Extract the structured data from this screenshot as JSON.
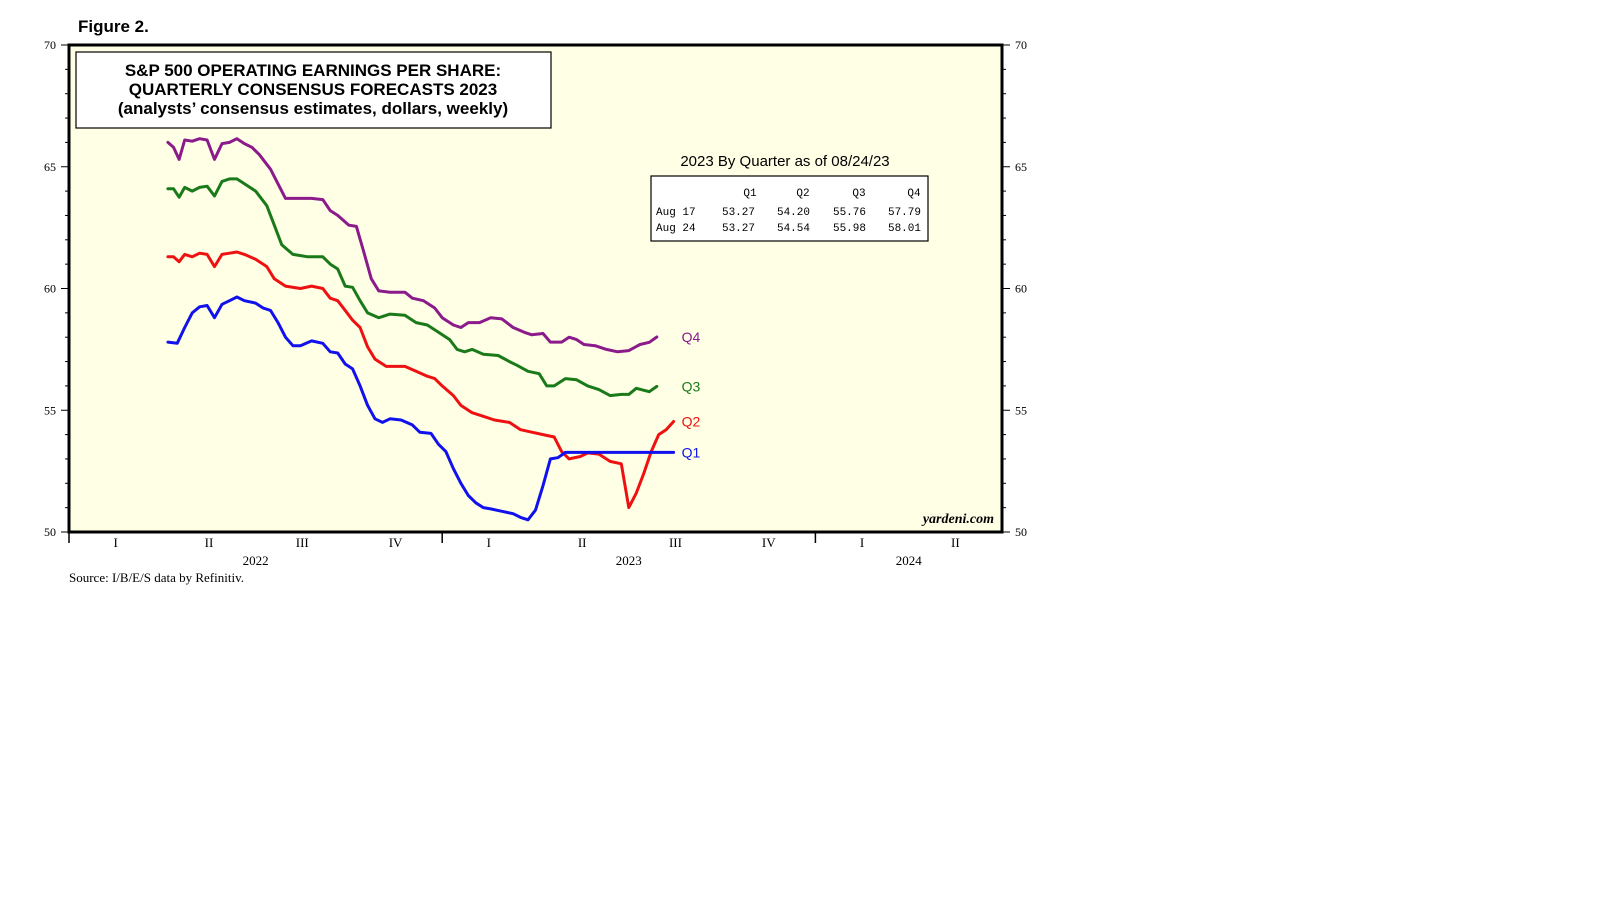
{
  "figure_label": "Figure 2.",
  "source": "Source: I/B/E/S data by Refinitiv.",
  "brand": "yardeni.com",
  "chart_data": {
    "type": "line",
    "title": [
      "S&P 500 OPERATING EARNINGS PER SHARE:",
      "QUARTERLY CONSENSUS FORECASTS 2023",
      "(analysts’ consensus estimates, dollars, weekly)"
    ],
    "ylim": [
      50,
      70
    ],
    "yticks": [
      50,
      55,
      60,
      65,
      70
    ],
    "xlim": [
      2022.0,
      2024.5
    ],
    "x_quarter_ticks": [
      {
        "x": 2022.125,
        "label": "I"
      },
      {
        "x": 2022.375,
        "label": "II"
      },
      {
        "x": 2022.625,
        "label": "III"
      },
      {
        "x": 2022.875,
        "label": "IV"
      },
      {
        "x": 2023.125,
        "label": "I"
      },
      {
        "x": 2023.375,
        "label": "II"
      },
      {
        "x": 2023.625,
        "label": "III"
      },
      {
        "x": 2023.875,
        "label": "IV"
      },
      {
        "x": 2024.125,
        "label": "I"
      },
      {
        "x": 2024.375,
        "label": "II"
      }
    ],
    "x_year_dividers": [
      2023.0,
      2024.0
    ],
    "x_years": [
      {
        "x": 2022.5,
        "label": "2022"
      },
      {
        "x": 2023.5,
        "label": "2023"
      },
      {
        "x": 2024.25,
        "label": "2024"
      }
    ],
    "grid": false,
    "series": [
      {
        "name": "Q4",
        "color": "#8B1A8B",
        "points": [
          [
            2022.265,
            66.0
          ],
          [
            2022.28,
            65.8
          ],
          [
            2022.295,
            65.3
          ],
          [
            2022.31,
            66.1
          ],
          [
            2022.33,
            66.05
          ],
          [
            2022.35,
            66.15
          ],
          [
            2022.37,
            66.1
          ],
          [
            2022.39,
            65.3
          ],
          [
            2022.41,
            65.95
          ],
          [
            2022.43,
            66.0
          ],
          [
            2022.45,
            66.15
          ],
          [
            2022.47,
            65.95
          ],
          [
            2022.49,
            65.8
          ],
          [
            2022.51,
            65.5
          ],
          [
            2022.54,
            64.9
          ],
          [
            2022.56,
            64.3
          ],
          [
            2022.58,
            63.7
          ],
          [
            2022.62,
            63.7
          ],
          [
            2022.65,
            63.7
          ],
          [
            2022.68,
            63.65
          ],
          [
            2022.7,
            63.2
          ],
          [
            2022.72,
            63.0
          ],
          [
            2022.75,
            62.6
          ],
          [
            2022.77,
            62.55
          ],
          [
            2022.79,
            61.5
          ],
          [
            2022.81,
            60.4
          ],
          [
            2022.83,
            59.9
          ],
          [
            2022.86,
            59.85
          ],
          [
            2022.9,
            59.85
          ],
          [
            2022.92,
            59.6
          ],
          [
            2022.95,
            59.5
          ],
          [
            2022.98,
            59.2
          ],
          [
            2023.0,
            58.8
          ],
          [
            2023.03,
            58.5
          ],
          [
            2023.05,
            58.4
          ],
          [
            2023.07,
            58.6
          ],
          [
            2023.1,
            58.6
          ],
          [
            2023.13,
            58.8
          ],
          [
            2023.16,
            58.75
          ],
          [
            2023.19,
            58.4
          ],
          [
            2023.22,
            58.2
          ],
          [
            2023.24,
            58.1
          ],
          [
            2023.27,
            58.15
          ],
          [
            2023.29,
            57.8
          ],
          [
            2023.32,
            57.8
          ],
          [
            2023.34,
            58.0
          ],
          [
            2023.36,
            57.9
          ],
          [
            2023.38,
            57.7
          ],
          [
            2023.41,
            57.65
          ],
          [
            2023.44,
            57.5
          ],
          [
            2023.47,
            57.4
          ],
          [
            2023.5,
            57.45
          ],
          [
            2023.53,
            57.7
          ],
          [
            2023.555,
            57.79
          ],
          [
            2023.575,
            58.01
          ]
        ]
      },
      {
        "name": "Q3",
        "color": "#1A7A1A",
        "points": [
          [
            2022.265,
            64.1
          ],
          [
            2022.28,
            64.1
          ],
          [
            2022.295,
            63.75
          ],
          [
            2022.31,
            64.15
          ],
          [
            2022.33,
            64.0
          ],
          [
            2022.35,
            64.15
          ],
          [
            2022.37,
            64.2
          ],
          [
            2022.39,
            63.8
          ],
          [
            2022.41,
            64.4
          ],
          [
            2022.43,
            64.5
          ],
          [
            2022.45,
            64.5
          ],
          [
            2022.47,
            64.3
          ],
          [
            2022.5,
            64.0
          ],
          [
            2022.53,
            63.4
          ],
          [
            2022.55,
            62.6
          ],
          [
            2022.57,
            61.8
          ],
          [
            2022.6,
            61.4
          ],
          [
            2022.64,
            61.3
          ],
          [
            2022.68,
            61.3
          ],
          [
            2022.7,
            61.0
          ],
          [
            2022.72,
            60.8
          ],
          [
            2022.74,
            60.1
          ],
          [
            2022.76,
            60.05
          ],
          [
            2022.78,
            59.5
          ],
          [
            2022.8,
            59.0
          ],
          [
            2022.83,
            58.8
          ],
          [
            2022.86,
            58.95
          ],
          [
            2022.9,
            58.9
          ],
          [
            2022.93,
            58.6
          ],
          [
            2022.96,
            58.5
          ],
          [
            2022.99,
            58.2
          ],
          [
            2023.02,
            57.9
          ],
          [
            2023.04,
            57.5
          ],
          [
            2023.06,
            57.4
          ],
          [
            2023.08,
            57.5
          ],
          [
            2023.11,
            57.3
          ],
          [
            2023.15,
            57.25
          ],
          [
            2023.18,
            57.0
          ],
          [
            2023.2,
            56.85
          ],
          [
            2023.23,
            56.6
          ],
          [
            2023.26,
            56.5
          ],
          [
            2023.28,
            56.0
          ],
          [
            2023.3,
            56.0
          ],
          [
            2023.33,
            56.3
          ],
          [
            2023.36,
            56.25
          ],
          [
            2023.39,
            56.0
          ],
          [
            2023.42,
            55.85
          ],
          [
            2023.45,
            55.6
          ],
          [
            2023.48,
            55.65
          ],
          [
            2023.5,
            55.65
          ],
          [
            2023.52,
            55.9
          ],
          [
            2023.555,
            55.76
          ],
          [
            2023.575,
            55.98
          ]
        ]
      },
      {
        "name": "Q2",
        "color": "#EE1111",
        "points": [
          [
            2022.265,
            61.3
          ],
          [
            2022.28,
            61.3
          ],
          [
            2022.295,
            61.1
          ],
          [
            2022.31,
            61.4
          ],
          [
            2022.33,
            61.3
          ],
          [
            2022.35,
            61.45
          ],
          [
            2022.37,
            61.4
          ],
          [
            2022.39,
            60.9
          ],
          [
            2022.41,
            61.4
          ],
          [
            2022.43,
            61.45
          ],
          [
            2022.45,
            61.5
          ],
          [
            2022.47,
            61.4
          ],
          [
            2022.5,
            61.2
          ],
          [
            2022.53,
            60.9
          ],
          [
            2022.55,
            60.4
          ],
          [
            2022.58,
            60.1
          ],
          [
            2022.62,
            60.0
          ],
          [
            2022.65,
            60.1
          ],
          [
            2022.68,
            60.0
          ],
          [
            2022.7,
            59.6
          ],
          [
            2022.72,
            59.5
          ],
          [
            2022.74,
            59.1
          ],
          [
            2022.76,
            58.7
          ],
          [
            2022.78,
            58.4
          ],
          [
            2022.8,
            57.6
          ],
          [
            2022.82,
            57.1
          ],
          [
            2022.85,
            56.8
          ],
          [
            2022.9,
            56.8
          ],
          [
            2022.93,
            56.6
          ],
          [
            2022.96,
            56.4
          ],
          [
            2022.98,
            56.3
          ],
          [
            2023.0,
            56.0
          ],
          [
            2023.03,
            55.6
          ],
          [
            2023.05,
            55.2
          ],
          [
            2023.08,
            54.9
          ],
          [
            2023.11,
            54.75
          ],
          [
            2023.14,
            54.6
          ],
          [
            2023.18,
            54.5
          ],
          [
            2023.21,
            54.2
          ],
          [
            2023.24,
            54.1
          ],
          [
            2023.27,
            54.0
          ],
          [
            2023.3,
            53.9
          ],
          [
            2023.32,
            53.3
          ],
          [
            2023.34,
            53.0
          ],
          [
            2023.37,
            53.1
          ],
          [
            2023.39,
            53.25
          ],
          [
            2023.42,
            53.2
          ],
          [
            2023.45,
            52.9
          ],
          [
            2023.48,
            52.8
          ],
          [
            2023.5,
            51.0
          ],
          [
            2023.52,
            51.6
          ],
          [
            2023.54,
            52.4
          ],
          [
            2023.56,
            53.3
          ],
          [
            2023.58,
            54.0
          ],
          [
            2023.6,
            54.2
          ],
          [
            2023.62,
            54.54
          ]
        ]
      },
      {
        "name": "Q1",
        "color": "#1111EE",
        "points": [
          [
            2022.265,
            57.8
          ],
          [
            2022.29,
            57.75
          ],
          [
            2022.31,
            58.4
          ],
          [
            2022.33,
            59.0
          ],
          [
            2022.35,
            59.25
          ],
          [
            2022.37,
            59.3
          ],
          [
            2022.39,
            58.8
          ],
          [
            2022.41,
            59.35
          ],
          [
            2022.43,
            59.5
          ],
          [
            2022.45,
            59.65
          ],
          [
            2022.47,
            59.5
          ],
          [
            2022.5,
            59.4
          ],
          [
            2022.52,
            59.2
          ],
          [
            2022.54,
            59.1
          ],
          [
            2022.56,
            58.6
          ],
          [
            2022.58,
            58.0
          ],
          [
            2022.6,
            57.65
          ],
          [
            2022.62,
            57.65
          ],
          [
            2022.65,
            57.85
          ],
          [
            2022.68,
            57.75
          ],
          [
            2022.7,
            57.4
          ],
          [
            2022.72,
            57.35
          ],
          [
            2022.74,
            56.9
          ],
          [
            2022.76,
            56.7
          ],
          [
            2022.78,
            56.0
          ],
          [
            2022.8,
            55.2
          ],
          [
            2022.82,
            54.65
          ],
          [
            2022.84,
            54.5
          ],
          [
            2022.86,
            54.65
          ],
          [
            2022.89,
            54.6
          ],
          [
            2022.92,
            54.4
          ],
          [
            2022.94,
            54.1
          ],
          [
            2022.97,
            54.05
          ],
          [
            2022.99,
            53.6
          ],
          [
            2023.01,
            53.3
          ],
          [
            2023.03,
            52.6
          ],
          [
            2023.05,
            52.0
          ],
          [
            2023.07,
            51.5
          ],
          [
            2023.09,
            51.2
          ],
          [
            2023.11,
            51.0
          ],
          [
            2023.13,
            50.95
          ],
          [
            2023.16,
            50.85
          ],
          [
            2023.19,
            50.75
          ],
          [
            2023.21,
            50.6
          ],
          [
            2023.23,
            50.5
          ],
          [
            2023.25,
            50.9
          ],
          [
            2023.27,
            51.9
          ],
          [
            2023.29,
            53.0
          ],
          [
            2023.31,
            53.05
          ],
          [
            2023.33,
            53.27
          ],
          [
            2023.4,
            53.27
          ],
          [
            2023.5,
            53.27
          ],
          [
            2023.58,
            53.27
          ],
          [
            2023.62,
            53.27
          ]
        ]
      }
    ]
  },
  "as_of_label": "2023 By Quarter as of 08/24/23",
  "table": {
    "headers": [
      "Q1",
      "Q2",
      "Q3",
      "Q4"
    ],
    "rows": [
      {
        "label": "Aug 17",
        "values": [
          "53.27",
          "54.20",
          "55.76",
          "57.79"
        ]
      },
      {
        "label": "Aug 24",
        "values": [
          "53.27",
          "54.54",
          "55.98",
          "58.01"
        ]
      }
    ]
  }
}
